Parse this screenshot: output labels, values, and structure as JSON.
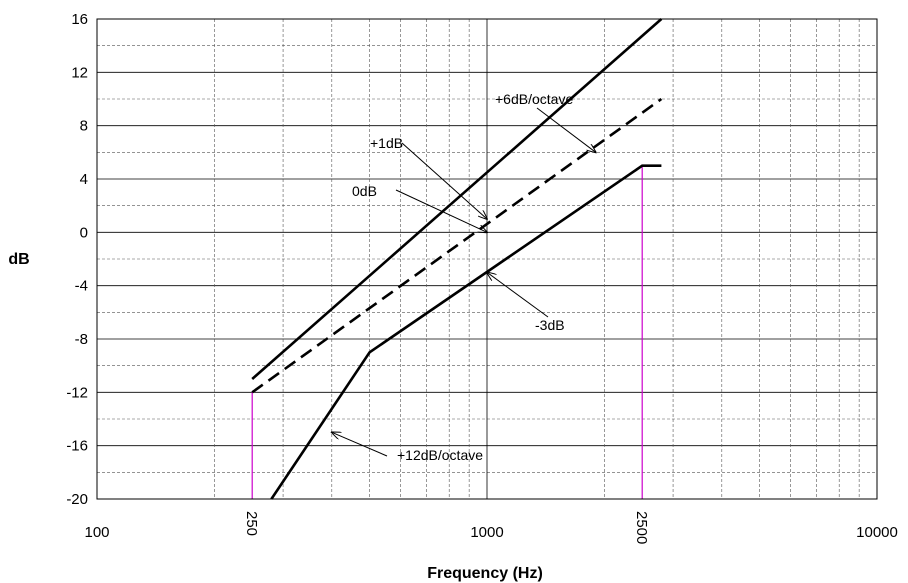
{
  "chart_data": {
    "type": "line",
    "title": "",
    "xlabel": "Frequency (Hz)",
    "ylabel": "dB",
    "x_scale": "log",
    "xlim": [
      100,
      10000
    ],
    "ylim": [
      -20,
      16
    ],
    "grid": true,
    "x_major_ticks": [
      {
        "value": 100,
        "label": "100",
        "rotated": false
      },
      {
        "value": 250,
        "label": "250",
        "rotated": true
      },
      {
        "value": 1000,
        "label": "1000",
        "rotated": false
      },
      {
        "value": 2500,
        "label": "2500",
        "rotated": true
      },
      {
        "value": 10000,
        "label": "10000",
        "rotated": false
      }
    ],
    "y_ticks": [
      16,
      12,
      8,
      4,
      0,
      -4,
      -8,
      -12,
      -16,
      -20
    ],
    "series": [
      {
        "key": "plus1db",
        "style": "solid",
        "color": "#000000",
        "points": [
          [
            250,
            -11
          ],
          [
            2800,
            16
          ]
        ]
      },
      {
        "key": "zerodb",
        "style": "dashed",
        "color": "#000000",
        "points": [
          [
            250,
            -12
          ],
          [
            2800,
            10
          ]
        ]
      },
      {
        "key": "minus3db",
        "style": "solid",
        "color": "#000000",
        "points": [
          [
            280,
            -20
          ],
          [
            500,
            -9
          ],
          [
            2500,
            5
          ],
          [
            2800,
            5
          ]
        ]
      }
    ],
    "reference_lines": [
      {
        "x": 250,
        "y": -12,
        "color": "#cc00cc"
      },
      {
        "x": 2500,
        "y": 5,
        "color": "#cc00cc"
      }
    ],
    "annotations": [
      {
        "key": "octave6",
        "text": "+6dB/octave",
        "target": [
          1900,
          6
        ]
      },
      {
        "key": "plus1",
        "text": "+1dB",
        "target": [
          1000,
          1
        ]
      },
      {
        "key": "zero",
        "text": "0dB",
        "target": [
          1000,
          0
        ]
      },
      {
        "key": "minus3",
        "text": "-3dB",
        "target": [
          1000,
          -3
        ]
      },
      {
        "key": "octave12",
        "text": "+12dB/octave",
        "target": [
          400,
          -15
        ]
      }
    ]
  }
}
